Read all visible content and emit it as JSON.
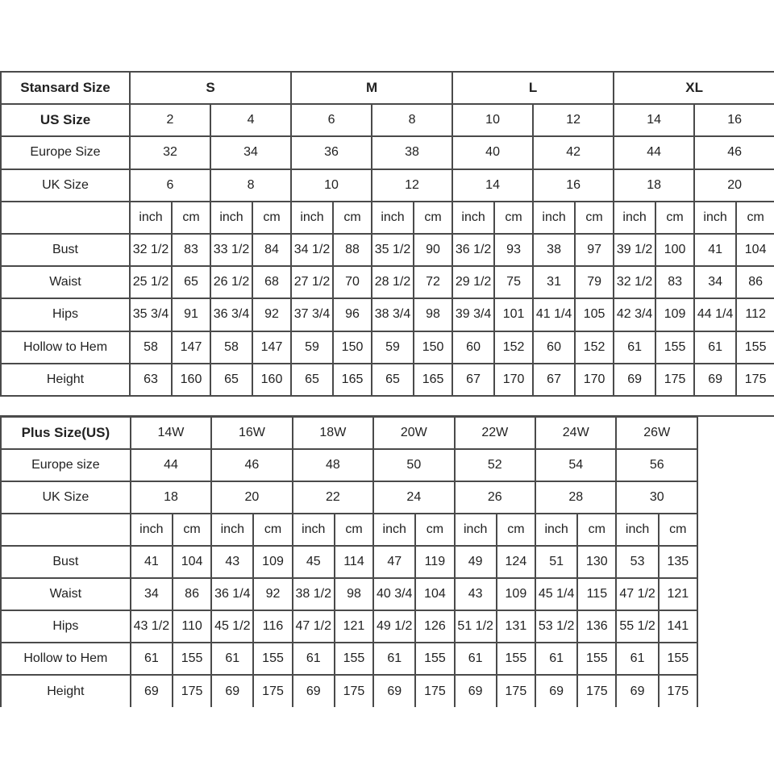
{
  "standard": {
    "header_label": "Stansard Size",
    "groups": [
      "S",
      "M",
      "L",
      "XL"
    ],
    "us_label": "US Size",
    "us": [
      "2",
      "4",
      "6",
      "8",
      "10",
      "12",
      "14",
      "16"
    ],
    "europe_label": "Europe Size",
    "europe": [
      "32",
      "34",
      "36",
      "38",
      "40",
      "42",
      "44",
      "46"
    ],
    "uk_label": "UK Size",
    "uk": [
      "6",
      "8",
      "10",
      "12",
      "14",
      "16",
      "18",
      "20"
    ],
    "units": [
      "inch",
      "cm"
    ],
    "measurements": [
      {
        "label": "Bust",
        "values": [
          [
            "32 1/2",
            "83"
          ],
          [
            "33 1/2",
            "84"
          ],
          [
            "34 1/2",
            "88"
          ],
          [
            "35 1/2",
            "90"
          ],
          [
            "36 1/2",
            "93"
          ],
          [
            "38",
            "97"
          ],
          [
            "39 1/2",
            "100"
          ],
          [
            "41",
            "104"
          ]
        ]
      },
      {
        "label": "Waist",
        "values": [
          [
            "25 1/2",
            "65"
          ],
          [
            "26 1/2",
            "68"
          ],
          [
            "27 1/2",
            "70"
          ],
          [
            "28 1/2",
            "72"
          ],
          [
            "29 1/2",
            "75"
          ],
          [
            "31",
            "79"
          ],
          [
            "32 1/2",
            "83"
          ],
          [
            "34",
            "86"
          ]
        ]
      },
      {
        "label": "Hips",
        "values": [
          [
            "35 3/4",
            "91"
          ],
          [
            "36 3/4",
            "92"
          ],
          [
            "37 3/4",
            "96"
          ],
          [
            "38 3/4",
            "98"
          ],
          [
            "39 3/4",
            "101"
          ],
          [
            "41 1/4",
            "105"
          ],
          [
            "42 3/4",
            "109"
          ],
          [
            "44 1/4",
            "112"
          ]
        ]
      },
      {
        "label": "Hollow to Hem",
        "values": [
          [
            "58",
            "147"
          ],
          [
            "58",
            "147"
          ],
          [
            "59",
            "150"
          ],
          [
            "59",
            "150"
          ],
          [
            "60",
            "152"
          ],
          [
            "60",
            "152"
          ],
          [
            "61",
            "155"
          ],
          [
            "61",
            "155"
          ]
        ]
      },
      {
        "label": "Height",
        "values": [
          [
            "63",
            "160"
          ],
          [
            "65",
            "160"
          ],
          [
            "65",
            "165"
          ],
          [
            "65",
            "165"
          ],
          [
            "67",
            "170"
          ],
          [
            "67",
            "170"
          ],
          [
            "69",
            "175"
          ],
          [
            "69",
            "175"
          ]
        ]
      }
    ]
  },
  "plus": {
    "header_label": "Plus Size(US)",
    "us": [
      "14W",
      "16W",
      "18W",
      "20W",
      "22W",
      "24W",
      "26W"
    ],
    "europe_label": "Europe size",
    "europe": [
      "44",
      "46",
      "48",
      "50",
      "52",
      "54",
      "56"
    ],
    "uk_label": "UK Size",
    "uk": [
      "18",
      "20",
      "22",
      "24",
      "26",
      "28",
      "30"
    ],
    "units": [
      "inch",
      "cm"
    ],
    "measurements": [
      {
        "label": "Bust",
        "values": [
          [
            "41",
            "104"
          ],
          [
            "43",
            "109"
          ],
          [
            "45",
            "114"
          ],
          [
            "47",
            "119"
          ],
          [
            "49",
            "124"
          ],
          [
            "51",
            "130"
          ],
          [
            "53",
            "135"
          ]
        ]
      },
      {
        "label": "Waist",
        "values": [
          [
            "34",
            "86"
          ],
          [
            "36 1/4",
            "92"
          ],
          [
            "38 1/2",
            "98"
          ],
          [
            "40 3/4",
            "104"
          ],
          [
            "43",
            "109"
          ],
          [
            "45 1/4",
            "115"
          ],
          [
            "47 1/2",
            "121"
          ]
        ]
      },
      {
        "label": "Hips",
        "values": [
          [
            "43 1/2",
            "110"
          ],
          [
            "45 1/2",
            "116"
          ],
          [
            "47 1/2",
            "121"
          ],
          [
            "49 1/2",
            "126"
          ],
          [
            "51 1/2",
            "131"
          ],
          [
            "53 1/2",
            "136"
          ],
          [
            "55 1/2",
            "141"
          ]
        ]
      },
      {
        "label": "Hollow to Hem",
        "values": [
          [
            "61",
            "155"
          ],
          [
            "61",
            "155"
          ],
          [
            "61",
            "155"
          ],
          [
            "61",
            "155"
          ],
          [
            "61",
            "155"
          ],
          [
            "61",
            "155"
          ],
          [
            "61",
            "155"
          ]
        ]
      },
      {
        "label": "Height",
        "values": [
          [
            "69",
            "175"
          ],
          [
            "69",
            "175"
          ],
          [
            "69",
            "175"
          ],
          [
            "69",
            "175"
          ],
          [
            "69",
            "175"
          ],
          [
            "69",
            "175"
          ],
          [
            "69",
            "175"
          ]
        ]
      }
    ]
  }
}
